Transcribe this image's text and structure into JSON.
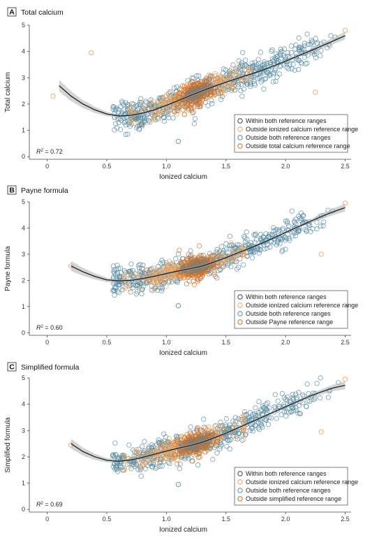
{
  "colors": {
    "within": "#3f3f6e",
    "outside_ionized": "#f2a65a",
    "outside_both": "#5b8ea6",
    "outside_formula": "#e07020",
    "overlap": "#8a7d6a",
    "fit_line": "#1f2a33",
    "band": "#b0b0b0"
  },
  "chart_data": [
    {
      "type": "scatter",
      "letter": "A",
      "title": "Total calcium",
      "xlabel": "Ionized calcium",
      "ylabel": "Total calcium",
      "xlim": [
        -0.15,
        2.55
      ],
      "ylim": [
        -0.1,
        5.0
      ],
      "xticks": [
        0,
        0.5,
        1.0,
        1.5,
        2.0,
        2.5
      ],
      "xtick_labels": [
        "0",
        "0.5",
        "1.0",
        "1.5",
        "2.0",
        "2.5"
      ],
      "yticks": [
        0,
        1,
        2,
        3,
        4,
        5
      ],
      "ytick_labels": [
        "0",
        "1",
        "2",
        "3",
        "4",
        "5"
      ],
      "r2_prefix": "R",
      "r2_text": " = 0.72",
      "legend_position": "bottom-right",
      "legend": [
        "Within both reference ranges",
        "Outside ionized calcium reference range",
        "Outside both reference ranges",
        "Outside total calcium reference range"
      ],
      "fit_curve": {
        "x": [
          0.1,
          0.2,
          0.3,
          0.4,
          0.5,
          0.6,
          0.7,
          0.8,
          0.9,
          1.0,
          1.1,
          1.2,
          1.3,
          1.4,
          1.5,
          1.6,
          1.7,
          1.8,
          1.9,
          2.0,
          2.1,
          2.2,
          2.3,
          2.4,
          2.5
        ],
        "y": [
          2.7,
          2.3,
          2.0,
          1.78,
          1.62,
          1.55,
          1.57,
          1.65,
          1.78,
          1.95,
          2.13,
          2.32,
          2.5,
          2.67,
          2.83,
          2.98,
          3.13,
          3.28,
          3.45,
          3.63,
          3.82,
          4.01,
          4.2,
          4.4,
          4.6
        ]
      },
      "notable_points": [
        [
          0.37,
          3.95
        ],
        [
          2.25,
          2.45
        ],
        [
          0.05,
          2.3
        ],
        [
          2.5,
          4.8
        ],
        [
          1.1,
          0.58
        ]
      ],
      "clouds": [
        {
          "group": "outside_both",
          "xrange": [
            0.55,
            2.45
          ],
          "spread": 0.28,
          "count": 650
        },
        {
          "group": "outside_ionized",
          "xrange": [
            0.75,
            1.65
          ],
          "spread": 0.22,
          "count": 260
        },
        {
          "group": "outside_formula",
          "xrange": [
            1.12,
            1.38
          ],
          "spread": 0.22,
          "count": 200
        },
        {
          "group": "overlap",
          "xrange": [
            1.14,
            1.36
          ],
          "spread": 0.12,
          "count": 120
        }
      ]
    },
    {
      "type": "scatter",
      "letter": "B",
      "title": "Payne formula",
      "xlabel": "Ionized calcium",
      "ylabel": "Payne formula",
      "xlim": [
        -0.15,
        2.55
      ],
      "ylim": [
        -0.1,
        5.0
      ],
      "xticks": [
        0,
        0.5,
        1.0,
        1.5,
        2.0,
        2.5
      ],
      "xtick_labels": [
        "0",
        "0.5",
        "1.0",
        "1.5",
        "2.0",
        "2.5"
      ],
      "yticks": [
        0,
        1,
        2,
        3,
        4,
        5
      ],
      "ytick_labels": [
        "0",
        "1",
        "2",
        "3",
        "4",
        "5"
      ],
      "r2_prefix": "R",
      "r2_text": " = 0.60",
      "legend_position": "bottom-right",
      "legend": [
        "Within both reference ranges",
        "Outside ionized calcium reference range",
        "Outside both reference ranges",
        "Outside Payne reference range"
      ],
      "fit_curve": {
        "x": [
          0.2,
          0.3,
          0.4,
          0.5,
          0.6,
          0.7,
          0.8,
          0.9,
          1.0,
          1.1,
          1.2,
          1.3,
          1.4,
          1.5,
          1.6,
          1.7,
          1.8,
          1.9,
          2.0,
          2.1,
          2.2,
          2.3,
          2.4,
          2.5
        ],
        "y": [
          2.55,
          2.33,
          2.15,
          2.02,
          1.98,
          2.0,
          2.07,
          2.16,
          2.26,
          2.36,
          2.45,
          2.55,
          2.7,
          2.87,
          3.05,
          3.23,
          3.42,
          3.62,
          3.83,
          4.04,
          4.24,
          4.44,
          4.62,
          4.78
        ]
      },
      "notable_points": [
        [
          1.1,
          1.03
        ],
        [
          2.5,
          4.95
        ],
        [
          0.2,
          2.55
        ],
        [
          2.3,
          3.0
        ]
      ],
      "clouds": [
        {
          "group": "outside_both",
          "xrange": [
            0.55,
            2.45
          ],
          "spread": 0.26,
          "count": 600
        },
        {
          "group": "outside_ionized",
          "xrange": [
            0.7,
            1.6
          ],
          "spread": 0.18,
          "count": 260
        },
        {
          "group": "outside_formula",
          "xrange": [
            1.12,
            1.38
          ],
          "spread": 0.22,
          "count": 200
        },
        {
          "group": "overlap",
          "xrange": [
            1.14,
            1.36
          ],
          "spread": 0.12,
          "count": 120
        }
      ]
    },
    {
      "type": "scatter",
      "letter": "C",
      "title": "Simplified formula",
      "xlabel": "Ionized calcium",
      "ylabel": "Simplified formula",
      "xlim": [
        -0.15,
        2.55
      ],
      "ylim": [
        -0.1,
        5.0
      ],
      "xticks": [
        0,
        0.5,
        1.0,
        1.5,
        2.0,
        2.5
      ],
      "xtick_labels": [
        "0",
        "0.5",
        "1.0",
        "1.5",
        "2.0",
        "2.5"
      ],
      "yticks": [
        0,
        1,
        2,
        3,
        4,
        5
      ],
      "ytick_labels": [
        "0",
        "1",
        "2",
        "3",
        "4",
        "5"
      ],
      "r2_prefix": "R",
      "r2_text": " = 0.69",
      "legend_position": "bottom-right",
      "legend": [
        "Within both reference ranges",
        "Outside ionized calcium reference range",
        "Outside both reference ranges",
        "Outside simplified reference range"
      ],
      "fit_curve": {
        "x": [
          0.2,
          0.3,
          0.4,
          0.5,
          0.6,
          0.7,
          0.8,
          0.9,
          1.0,
          1.1,
          1.2,
          1.3,
          1.4,
          1.5,
          1.6,
          1.7,
          1.8,
          1.9,
          2.0,
          2.1,
          2.2,
          2.3,
          2.4,
          2.5
        ],
        "y": [
          2.5,
          2.2,
          2.0,
          1.87,
          1.83,
          1.88,
          1.98,
          2.1,
          2.22,
          2.33,
          2.43,
          2.55,
          2.72,
          2.9,
          3.1,
          3.3,
          3.5,
          3.7,
          3.9,
          4.1,
          4.3,
          4.47,
          4.62,
          4.72
        ]
      },
      "notable_points": [
        [
          1.1,
          0.95
        ],
        [
          2.5,
          4.95
        ],
        [
          2.3,
          2.95
        ],
        [
          0.2,
          2.45
        ]
      ],
      "clouds": [
        {
          "group": "outside_both",
          "xrange": [
            0.55,
            2.45
          ],
          "spread": 0.26,
          "count": 600
        },
        {
          "group": "outside_ionized",
          "xrange": [
            0.7,
            1.6
          ],
          "spread": 0.18,
          "count": 260
        },
        {
          "group": "outside_formula",
          "xrange": [
            1.12,
            1.38
          ],
          "spread": 0.22,
          "count": 200
        },
        {
          "group": "overlap",
          "xrange": [
            1.14,
            1.36
          ],
          "spread": 0.12,
          "count": 120
        }
      ]
    }
  ]
}
